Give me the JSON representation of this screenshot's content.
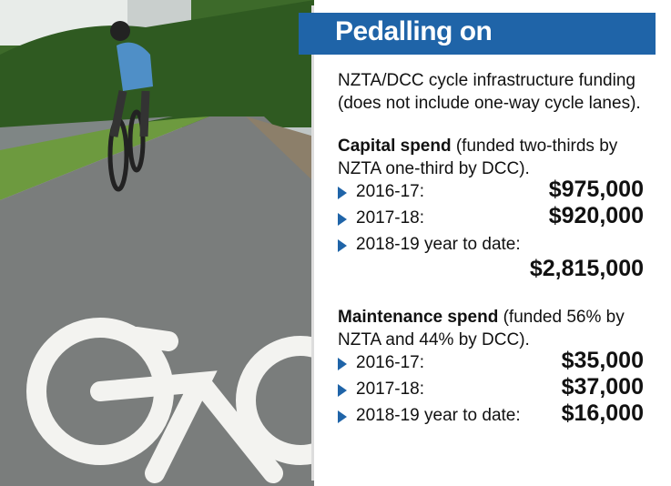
{
  "title": "Pedalling on",
  "intro": "NZTA/DCC cycle infrastructure funding (does not include one-way cycle lanes).",
  "sections": [
    {
      "heading": "Capital spend",
      "note": "(funded two-thirds by NZTA one-third by DCC).",
      "items": [
        {
          "label": "2016-17:",
          "value": "$975,000"
        },
        {
          "label": "2017-18:",
          "value": "$920,000"
        },
        {
          "label": "2018-19 year to date:",
          "value": "$2,815,000"
        }
      ]
    },
    {
      "heading": "Maintenance spend",
      "note": "(funded 56% by NZTA and 44% by DCC).",
      "items": [
        {
          "label": "2016-17:",
          "value": "$35,000"
        },
        {
          "label": "2017-18:",
          "value": "$37,000"
        },
        {
          "label": "2018-19 year to date:",
          "value": "$16,000"
        }
      ]
    }
  ]
}
